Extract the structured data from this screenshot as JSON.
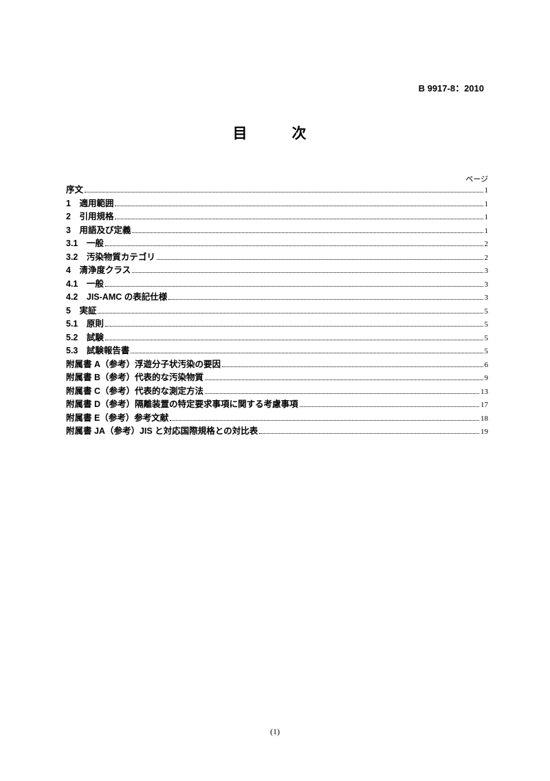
{
  "doc_number": "B 9917-8：2010",
  "title": "目　次",
  "page_label": "ページ",
  "footer": "(1)",
  "toc": [
    {
      "label": "序文",
      "page": "1"
    },
    {
      "label": "1　適用範囲",
      "page": "1"
    },
    {
      "label": "2　引用規格",
      "page": "1"
    },
    {
      "label": "3　用語及び定義",
      "page": "1"
    },
    {
      "label": "3.1　一般",
      "page": "2"
    },
    {
      "label": "3.2　汚染物質カテゴリ",
      "page": "2"
    },
    {
      "label": "4　清浄度クラス",
      "page": "3"
    },
    {
      "label": "4.1　一般",
      "page": "3"
    },
    {
      "label": "4.2　JIS-AMC の表記仕様",
      "page": "3"
    },
    {
      "label": "5　実証",
      "page": "5"
    },
    {
      "label": "5.1　原則",
      "page": "5"
    },
    {
      "label": "5.2　試験",
      "page": "5"
    },
    {
      "label": "5.3　試験報告書",
      "page": "5"
    },
    {
      "label": "附属書 A（参考）浮遊分子状汚染の要因",
      "page": "6"
    },
    {
      "label": "附属書 B（参考）代表的な汚染物質",
      "page": "9"
    },
    {
      "label": "附属書 C（参考）代表的な測定方法",
      "page": "13"
    },
    {
      "label": "附属書 D（参考）隔離装置の特定要求事項に関する考慮事項",
      "page": "17"
    },
    {
      "label": "附属書 E（参考）参考文献",
      "page": "18"
    },
    {
      "label": "附属書 JA（参考）JIS と対応国際規格との対比表",
      "page": "19"
    }
  ]
}
